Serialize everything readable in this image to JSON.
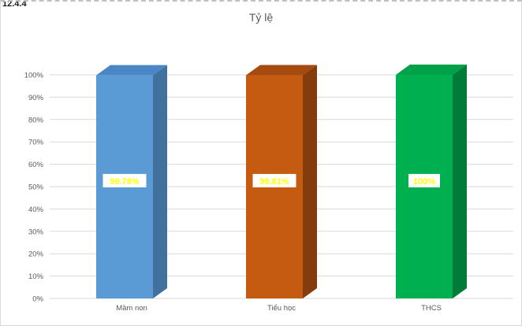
{
  "corner_label": "12.4.4",
  "chart_data": {
    "type": "bar",
    "style": "3d-column",
    "title": "Tỷ lệ",
    "categories": [
      "Mầm non",
      "Tiểu học",
      "THCS"
    ],
    "values": [
      99.78,
      99.81,
      100
    ],
    "labels": [
      "99.78%",
      "99.81%",
      "100%"
    ],
    "colors": [
      {
        "front": "#5B9BD5",
        "side": "#41719C",
        "top": "#4A86C5"
      },
      {
        "front": "#C55A11",
        "side": "#843C0C",
        "top": "#A64B10"
      },
      {
        "front": "#00B050",
        "side": "#007B38",
        "top": "#00A148"
      }
    ],
    "label_color": "#FFFF00",
    "label_background": "#FFFFFF",
    "y_ticks": [
      "0%",
      "10%",
      "20%",
      "30%",
      "40%",
      "50%",
      "60%",
      "70%",
      "80%",
      "90%",
      "100%"
    ],
    "ylim": [
      0,
      100
    ],
    "grid": true,
    "gridline_color": "#D9D9D9",
    "axis_text_color": "#595959",
    "legend": "none"
  }
}
